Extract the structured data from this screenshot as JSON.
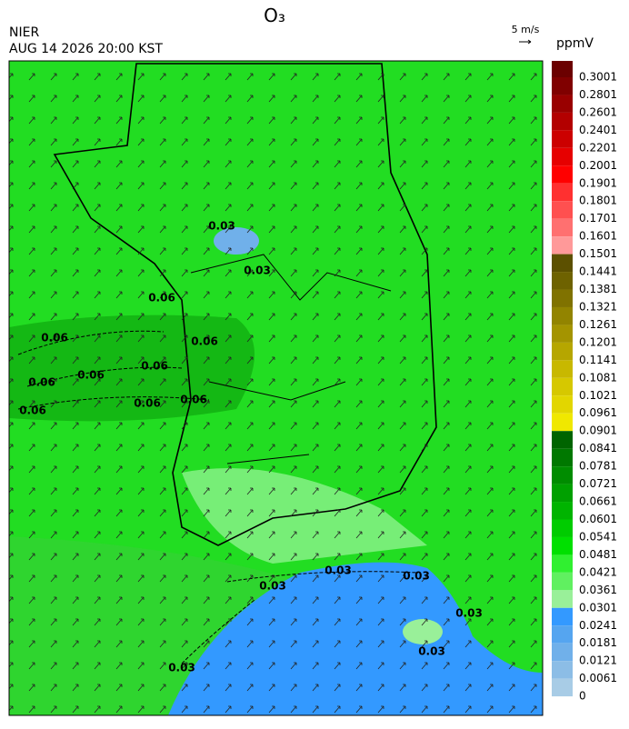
{
  "header": {
    "title": "O₃",
    "agency": "NIER",
    "datetime": "AUG 14 2026 20:00 KST",
    "vector_scale": "5 m/s",
    "unit": "ppmV"
  },
  "contour_labels": [
    "0.06",
    "0.06",
    "0.06",
    "0.06",
    "0.06",
    "0.06",
    "0.06",
    "0.06",
    "0.06",
    "0.03",
    "0.03",
    "0.03",
    "0.03",
    "0.03",
    "0.03",
    "0.03",
    "0.03"
  ],
  "legend": [
    {
      "label": "0.3001",
      "color": "#6b0000"
    },
    {
      "label": "0.2801",
      "color": "#800000"
    },
    {
      "label": "0.2601",
      "color": "#990000"
    },
    {
      "label": "0.2401",
      "color": "#b30000"
    },
    {
      "label": "0.2201",
      "color": "#cc0000"
    },
    {
      "label": "0.2001",
      "color": "#e60000"
    },
    {
      "label": "0.1901",
      "color": "#ff0000"
    },
    {
      "label": "0.1801",
      "color": "#ff3030"
    },
    {
      "label": "0.1701",
      "color": "#ff5050"
    },
    {
      "label": "0.1601",
      "color": "#ff7070"
    },
    {
      "label": "0.1501",
      "color": "#ff9999"
    },
    {
      "label": "0.1441",
      "color": "#5c5000"
    },
    {
      "label": "0.1381",
      "color": "#6e6200"
    },
    {
      "label": "0.1321",
      "color": "#807200"
    },
    {
      "label": "0.1261",
      "color": "#928400"
    },
    {
      "label": "0.1201",
      "color": "#a49400"
    },
    {
      "label": "0.1141",
      "color": "#b6a600"
    },
    {
      "label": "0.1081",
      "color": "#c8b800"
    },
    {
      "label": "0.1021",
      "color": "#d6c800"
    },
    {
      "label": "0.0961",
      "color": "#e2d600"
    },
    {
      "label": "0.0901",
      "color": "#f0e800"
    },
    {
      "label": "0.0841",
      "color": "#006400"
    },
    {
      "label": "0.0781",
      "color": "#007800"
    },
    {
      "label": "0.0721",
      "color": "#008c00"
    },
    {
      "label": "0.0661",
      "color": "#00a000"
    },
    {
      "label": "0.0601",
      "color": "#00b400"
    },
    {
      "label": "0.0541",
      "color": "#00cc00"
    },
    {
      "label": "0.0481",
      "color": "#00e000"
    },
    {
      "label": "0.0421",
      "color": "#30f030"
    },
    {
      "label": "0.0361",
      "color": "#60f060"
    },
    {
      "label": "0.0301",
      "color": "#99f099"
    },
    {
      "label": "0.0241",
      "color": "#3399ff"
    },
    {
      "label": "0.0181",
      "color": "#55a5f0"
    },
    {
      "label": "0.0121",
      "color": "#70b0ea"
    },
    {
      "label": "0.0061",
      "color": "#8cbde6"
    },
    {
      "label": "0",
      "color": "#a8cce6"
    }
  ]
}
